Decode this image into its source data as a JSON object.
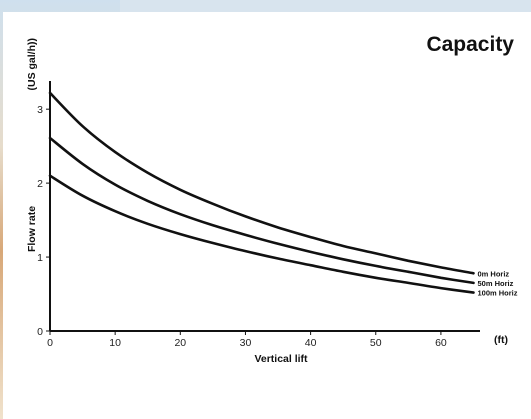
{
  "chart_data": {
    "type": "line",
    "title": "Capacity",
    "xlabel": "Vertical lift",
    "x_unit": "(ft)",
    "ylabel": "Flow rate",
    "y_unit": "(US gal/h))",
    "xlim": [
      0,
      66
    ],
    "ylim": [
      0,
      3.3
    ],
    "x_ticks": [
      0,
      10,
      20,
      30,
      40,
      50,
      60
    ],
    "y_ticks": [
      0,
      1,
      2,
      3
    ],
    "grid": false,
    "x": [
      0,
      5,
      10,
      15,
      20,
      25,
      30,
      35,
      40,
      45,
      50,
      55,
      60,
      65
    ],
    "series": [
      {
        "name": "0m Horiz",
        "values": [
          3.22,
          2.77,
          2.42,
          2.14,
          1.91,
          1.72,
          1.55,
          1.4,
          1.27,
          1.15,
          1.05,
          0.95,
          0.86,
          0.78
        ]
      },
      {
        "name": "50m Horiz",
        "values": [
          2.61,
          2.26,
          1.98,
          1.76,
          1.58,
          1.43,
          1.3,
          1.18,
          1.07,
          0.97,
          0.88,
          0.8,
          0.72,
          0.65
        ]
      },
      {
        "name": "100m Horiz",
        "values": [
          2.1,
          1.83,
          1.62,
          1.45,
          1.31,
          1.19,
          1.08,
          0.98,
          0.89,
          0.8,
          0.72,
          0.65,
          0.58,
          0.52
        ]
      }
    ],
    "colors": {
      "line": "#111111",
      "axis": "#111111"
    }
  }
}
